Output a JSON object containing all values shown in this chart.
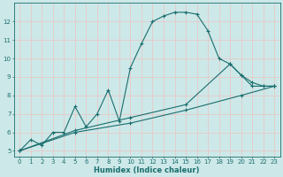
{
  "xlabel": "Humidex (Indice chaleur)",
  "background_color": "#cde8e8",
  "grid_color": "#e8c8c8",
  "line_color": "#1a6e6e",
  "xlim": [
    -0.5,
    23.5
  ],
  "ylim": [
    4.7,
    13.0
  ],
  "xticks": [
    0,
    1,
    2,
    3,
    4,
    5,
    6,
    7,
    8,
    9,
    10,
    11,
    12,
    13,
    14,
    15,
    16,
    17,
    18,
    19,
    20,
    21,
    22,
    23
  ],
  "yticks": [
    5,
    6,
    7,
    8,
    9,
    10,
    11,
    12
  ],
  "series1_x": [
    0,
    1,
    2,
    3,
    4,
    5,
    6,
    7,
    8,
    9,
    10,
    11,
    12,
    13,
    14,
    15,
    16,
    17,
    18,
    19,
    20,
    21,
    22,
    23
  ],
  "series1_y": [
    5.0,
    5.6,
    5.3,
    6.0,
    6.0,
    7.4,
    6.3,
    7.0,
    8.3,
    6.6,
    9.5,
    10.8,
    12.0,
    12.3,
    12.5,
    12.5,
    12.4,
    11.5,
    10.0,
    9.7,
    9.1,
    8.5,
    8.5,
    8.5
  ],
  "series2_x": [
    0,
    5,
    10,
    15,
    19,
    20,
    21,
    22,
    23
  ],
  "series2_y": [
    5.0,
    6.1,
    6.8,
    7.5,
    9.7,
    9.1,
    8.7,
    8.5,
    8.5
  ],
  "series3_x": [
    0,
    5,
    10,
    15,
    20,
    23
  ],
  "series3_y": [
    5.0,
    6.0,
    6.5,
    7.2,
    8.0,
    8.5
  ]
}
